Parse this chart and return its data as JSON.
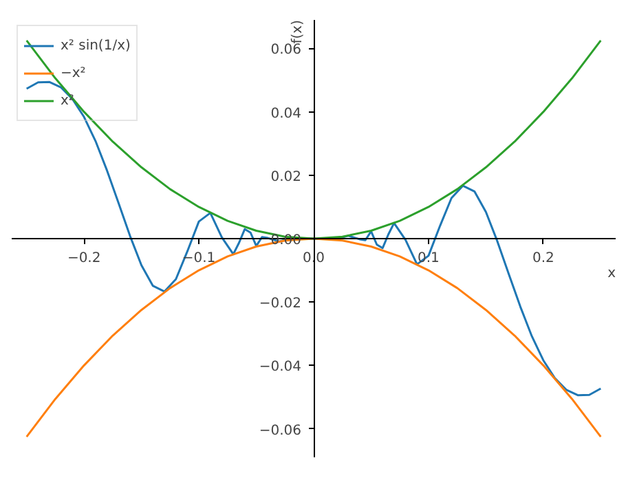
{
  "chart_data": {
    "type": "line",
    "xlabel": "x",
    "ylabel": "f(x)",
    "xlim": [
      -0.263,
      0.263
    ],
    "ylim": [
      -0.069,
      0.069
    ],
    "xticks": [
      {
        "value": -0.2,
        "label": "−0.2"
      },
      {
        "value": -0.1,
        "label": "−0.1"
      },
      {
        "value": 0,
        "label": "0.0"
      },
      {
        "value": 0.1,
        "label": "0.1"
      },
      {
        "value": 0.2,
        "label": "0.2"
      }
    ],
    "yticks": [
      {
        "value": -0.06,
        "label": "−0.06"
      },
      {
        "value": -0.04,
        "label": "−0.04"
      },
      {
        "value": -0.02,
        "label": "−0.02"
      },
      {
        "value": 0,
        "label": "0.00"
      },
      {
        "value": 0.02,
        "label": "0.02"
      },
      {
        "value": 0.04,
        "label": "0.04"
      },
      {
        "value": 0.06,
        "label": "0.06"
      }
    ],
    "grid": false,
    "legend": "top left",
    "marker": "none",
    "line_style": "solid",
    "series": [
      {
        "name": "x² sin(1/x)",
        "color": "#1f77b4",
        "x": [
          -0.25,
          -0.24,
          -0.23,
          -0.22,
          -0.21,
          -0.2,
          -0.19,
          -0.18,
          -0.17,
          -0.16,
          -0.15,
          -0.14,
          -0.13,
          -0.12,
          -0.11,
          -0.1,
          -0.09,
          -0.08,
          -0.07,
          -0.065,
          -0.06,
          -0.055,
          -0.05,
          -0.045,
          -0.04,
          -0.03,
          -0.02,
          -0.01,
          0,
          0.01,
          0.02,
          0.03,
          0.04,
          0.045,
          0.05,
          0.055,
          0.06,
          0.065,
          0.07,
          0.08,
          0.09,
          0.1,
          0.11,
          0.12,
          0.13,
          0.14,
          0.15,
          0.16,
          0.17,
          0.18,
          0.19,
          0.2,
          0.21,
          0.22,
          0.23,
          0.24,
          0.25
        ],
        "values": [
          0.0473,
          0.0493,
          0.0494,
          0.0477,
          0.044,
          0.0384,
          0.0308,
          0.0215,
          0.0113,
          0.0009,
          -0.0084,
          -0.0149,
          -0.0167,
          -0.0128,
          -0.004,
          0.0054,
          0.0081,
          0.0004,
          -0.0049,
          -0.0013,
          0.003,
          0.0019,
          -0.0023,
          0.0005,
          0.0002,
          -0.0009,
          0.0001,
          0.0001,
          0,
          -0.0001,
          -0.0001,
          0.0009,
          -0.0002,
          -0.0005,
          0.0023,
          -0.0019,
          -0.003,
          0.0013,
          0.0049,
          -0.0004,
          -0.0081,
          -0.0054,
          0.004,
          0.0128,
          0.0167,
          0.0149,
          0.0084,
          -0.0009,
          -0.0113,
          -0.0215,
          -0.0308,
          -0.0384,
          -0.044,
          -0.0477,
          -0.0494,
          -0.0493,
          -0.0473
        ]
      },
      {
        "name": "−x²",
        "color": "#ff7f0e",
        "x": [
          -0.25,
          -0.225,
          -0.2,
          -0.175,
          -0.15,
          -0.125,
          -0.1,
          -0.075,
          -0.05,
          -0.025,
          0,
          0.025,
          0.05,
          0.075,
          0.1,
          0.125,
          0.15,
          0.175,
          0.2,
          0.225,
          0.25
        ],
        "values": [
          -0.0625,
          -0.0506,
          -0.04,
          -0.0306,
          -0.0225,
          -0.0156,
          -0.01,
          -0.0056,
          -0.0025,
          -0.0006,
          0,
          -0.0006,
          -0.0025,
          -0.0056,
          -0.01,
          -0.0156,
          -0.0225,
          -0.0306,
          -0.04,
          -0.0506,
          -0.0625
        ]
      },
      {
        "name": "x²",
        "color": "#2ca02c",
        "x": [
          -0.25,
          -0.225,
          -0.2,
          -0.175,
          -0.15,
          -0.125,
          -0.1,
          -0.075,
          -0.05,
          -0.025,
          0,
          0.025,
          0.05,
          0.075,
          0.1,
          0.125,
          0.15,
          0.175,
          0.2,
          0.225,
          0.25
        ],
        "values": [
          0.0625,
          0.0506,
          0.04,
          0.0306,
          0.0225,
          0.0156,
          0.01,
          0.0056,
          0.0025,
          0.0006,
          0,
          0.0006,
          0.0025,
          0.0056,
          0.01,
          0.0156,
          0.0225,
          0.0306,
          0.04,
          0.0506,
          0.0625
        ]
      }
    ]
  }
}
